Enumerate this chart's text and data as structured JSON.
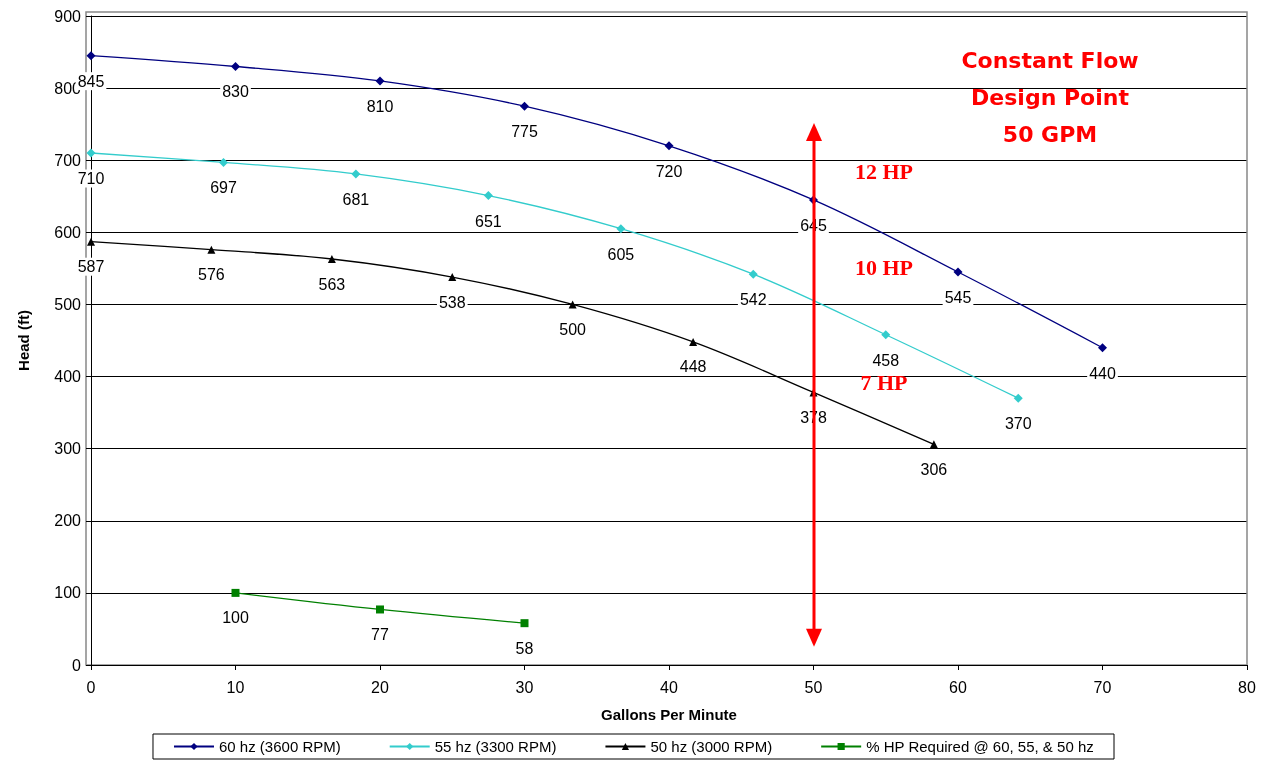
{
  "chart_data": {
    "type": "line",
    "xlabel": "Gallons Per Minute",
    "ylabel": "Head (ft)",
    "xlim": [
      0,
      80
    ],
    "xticks": [
      0,
      10,
      20,
      30,
      40,
      50,
      60,
      70,
      80
    ],
    "ylim": [
      0,
      900
    ],
    "yticks": [
      0,
      100,
      200,
      300,
      400,
      500,
      600,
      700,
      800,
      900
    ],
    "grid": "y",
    "legend": "bottom",
    "data_labels": true,
    "line_style": "solid",
    "series": [
      {
        "name": "60 hz (3600 RPM)",
        "color": "#000080",
        "marker": "diamond",
        "x": [
          0,
          10,
          20,
          30,
          40,
          50,
          60,
          70
        ],
        "values": [
          845,
          830,
          810,
          775,
          720,
          645,
          545,
          440
        ]
      },
      {
        "name": "55 hz (3300 RPM)",
        "color": "#33cccc",
        "marker": "diamond",
        "x": [
          0,
          9.17,
          18.33,
          27.5,
          36.67,
          45.83,
          55,
          64.17
        ],
        "values": [
          710,
          697,
          681,
          651,
          605,
          542,
          458,
          370
        ]
      },
      {
        "name": "50 hz (3000 RPM)",
        "color": "#000000",
        "marker": "triangle",
        "x": [
          0,
          8.33,
          16.67,
          25,
          33.33,
          41.67,
          50,
          58.33
        ],
        "values": [
          587,
          576,
          563,
          538,
          500,
          448,
          378,
          306
        ]
      },
      {
        "name": "% HP Required @ 60, 55, & 50 hz",
        "color": "#008000",
        "marker": "square",
        "x": [
          10,
          20,
          30
        ],
        "values": [
          100,
          77,
          58
        ]
      }
    ],
    "ref_lines": [
      {
        "axis": "x",
        "value": 50,
        "color": "#ff0000"
      }
    ],
    "annotations": [
      "Constant Flow\nDesign Point\n50 GPM",
      "12 HP",
      "10 HP",
      "7 HP"
    ]
  }
}
